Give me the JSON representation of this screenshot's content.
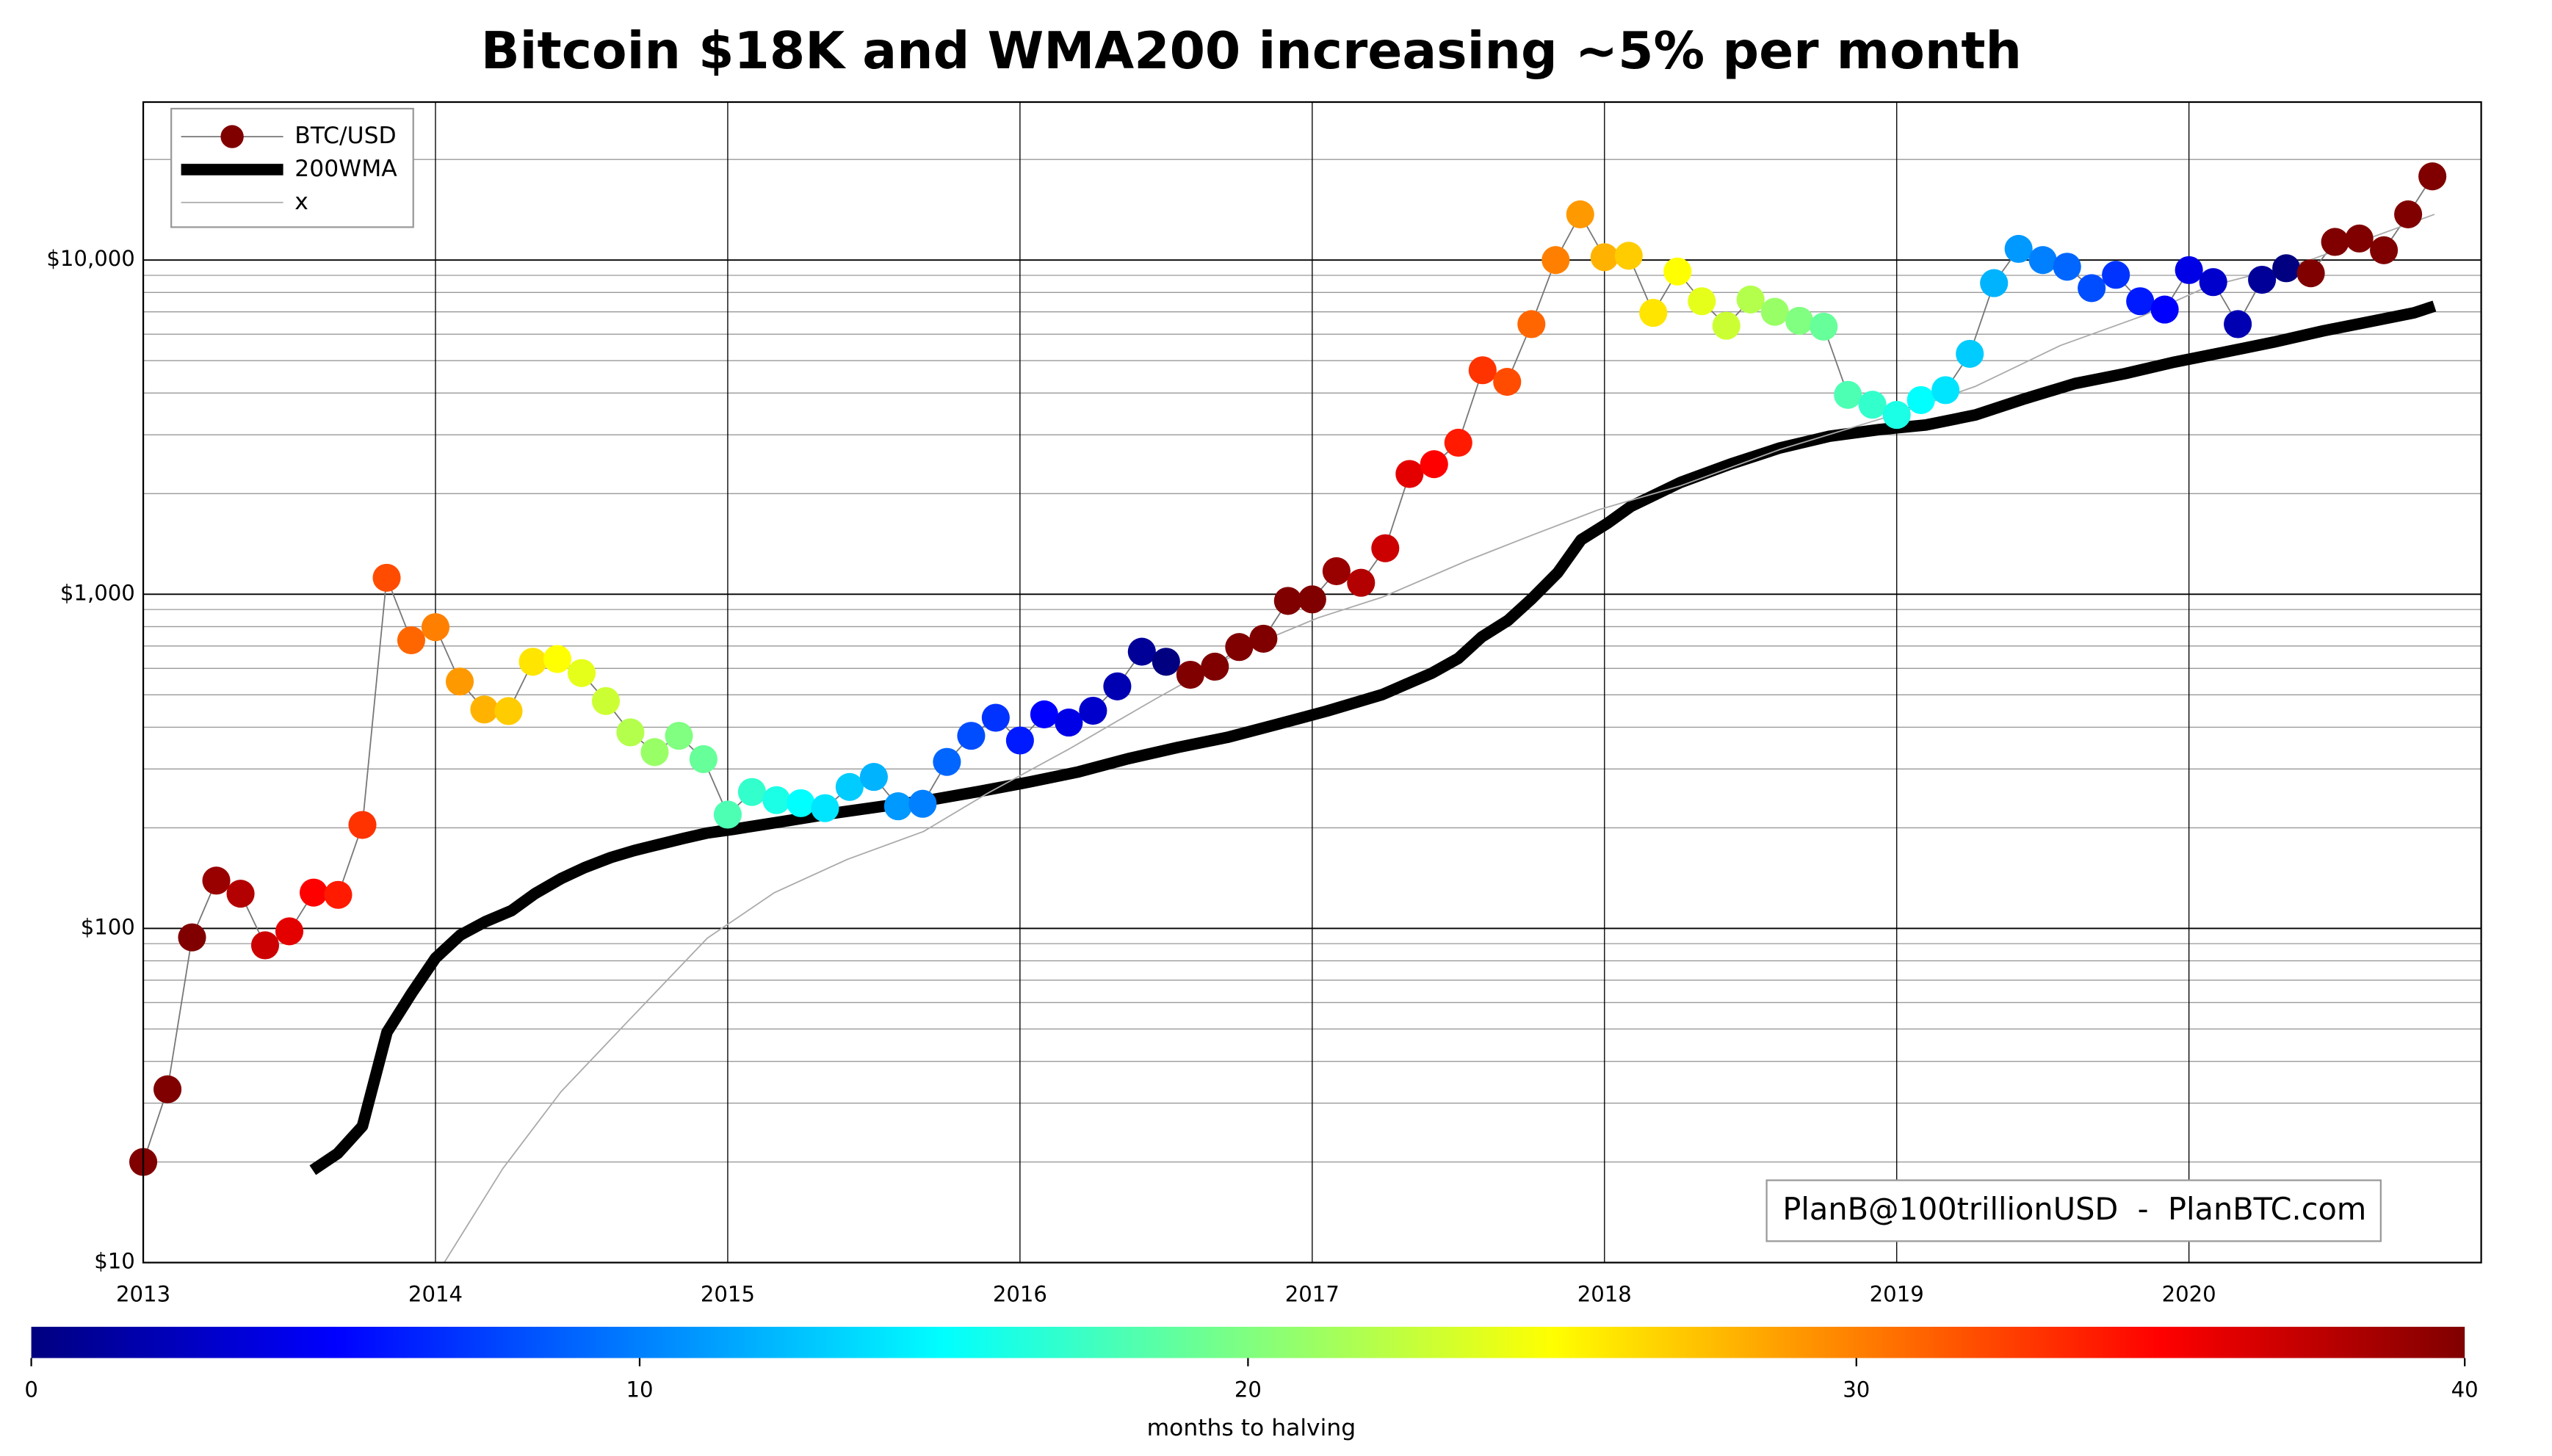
{
  "chart_data": {
    "type": "scatter-line",
    "title": "Bitcoin $18K and WMA200 increasing ~5% per month",
    "xlim": [
      2013,
      2021
    ],
    "xticks": [
      2013,
      2014,
      2015,
      2016,
      2017,
      2018,
      2019,
      2020
    ],
    "ylim": [
      10,
      29700
    ],
    "log_y": true,
    "y_minor_grid": true,
    "yticks": [
      {
        "value": 10,
        "label": "$10"
      },
      {
        "value": 100,
        "label": "$100"
      },
      {
        "value": 1000,
        "label": "$1,000"
      },
      {
        "value": 10000,
        "label": "$10,000"
      }
    ],
    "grid": true,
    "legend": "upper left",
    "series": [
      {
        "name": "BTC/USD",
        "line_color": "#777",
        "colormap": "jet",
        "x": [
          2013,
          2013.083,
          2013.167,
          2013.25,
          2013.333,
          2013.417,
          2013.5,
          2013.583,
          2013.667,
          2013.75,
          2013.833,
          2013.917,
          2014,
          2014.083,
          2014.167,
          2014.25,
          2014.333,
          2014.417,
          2014.5,
          2014.583,
          2014.667,
          2014.75,
          2014.833,
          2014.917,
          2015,
          2015.083,
          2015.167,
          2015.25,
          2015.333,
          2015.417,
          2015.5,
          2015.583,
          2015.667,
          2015.75,
          2015.833,
          2015.917,
          2016,
          2016.083,
          2016.167,
          2016.25,
          2016.333,
          2016.417,
          2016.5,
          2016.583,
          2016.667,
          2016.75,
          2016.833,
          2016.917,
          2017,
          2017.083,
          2017.167,
          2017.25,
          2017.333,
          2017.417,
          2017.5,
          2017.583,
          2017.667,
          2017.75,
          2017.833,
          2017.917,
          2018,
          2018.083,
          2018.167,
          2018.25,
          2018.333,
          2018.417,
          2018.5,
          2018.583,
          2018.667,
          2018.75,
          2018.833,
          2018.917,
          2019,
          2019.083,
          2019.167,
          2019.25,
          2019.333,
          2019.417,
          2019.5,
          2019.583,
          2019.667,
          2019.75,
          2019.833,
          2019.917,
          2020,
          2020.083,
          2020.167,
          2020.25,
          2020.333,
          2020.417,
          2020.5,
          2020.583,
          2020.667,
          2020.75,
          2020.833
        ],
        "values": [
          20,
          33,
          94,
          139,
          127,
          89,
          98,
          128,
          126,
          204,
          1120,
          728,
          797,
          548,
          452,
          447,
          628,
          640,
          581,
          479,
          386,
          337,
          377,
          321,
          219,
          256,
          242,
          237,
          229,
          265,
          284,
          232,
          236,
          315,
          377,
          427,
          365,
          437,
          413,
          448,
          530,
          673,
          628,
          574,
          607,
          695,
          736,
          955,
          965,
          1172,
          1082,
          1373,
          2290,
          2450,
          2840,
          4680,
          4320,
          6430,
          10000,
          13700,
          10200,
          10300,
          6950,
          9240,
          7530,
          6360,
          7620,
          7000,
          6580,
          6320,
          3950,
          3690,
          3440,
          3810,
          4080,
          5240,
          8530,
          10800,
          10000,
          9550,
          8240,
          9030,
          7530,
          7110,
          9330,
          8590,
          6430,
          8730,
          9450,
          9130,
          11330,
          11600,
          10700,
          13700,
          17800
        ],
        "color_values": [
          42,
          41,
          40,
          39,
          38,
          37,
          36,
          35,
          34,
          33,
          32,
          31,
          30,
          29,
          28,
          27,
          26,
          25,
          24,
          23,
          22,
          21,
          20,
          19,
          18,
          17,
          16,
          15,
          14,
          13,
          12,
          11,
          10,
          9,
          8,
          7,
          6,
          5,
          4,
          3,
          2,
          1,
          0,
          45,
          44,
          43,
          42,
          41,
          40,
          39,
          38,
          37,
          36,
          35,
          34,
          33,
          32,
          31,
          30,
          29,
          28,
          27,
          26,
          25,
          24,
          23,
          22,
          21,
          20,
          19,
          18,
          17,
          16,
          15,
          14,
          13,
          12,
          11,
          10,
          9,
          8,
          7,
          6,
          5,
          4,
          3,
          2,
          1,
          0,
          46,
          45,
          44,
          43,
          42,
          41
        ]
      },
      {
        "name": "200WMA",
        "color": "#000000",
        "x": [
          2013.58,
          2013.665,
          2013.75,
          2013.834,
          2013.92,
          2014,
          2014.085,
          2014.17,
          2014.26,
          2014.34,
          2014.43,
          2014.51,
          2014.6,
          2014.68,
          2014.76,
          2014.85,
          2014.93,
          2015.02,
          2015.19,
          2015.36,
          2015.53,
          2015.69,
          2015.86,
          2016.03,
          2016.2,
          2016.37,
          2016.54,
          2016.71,
          2016.88,
          2017.05,
          2017.24,
          2017.41,
          2017.5,
          2017.58,
          2017.67,
          2017.75,
          2017.84,
          2017.92,
          2018.01,
          2018.09,
          2018.26,
          2018.43,
          2018.6,
          2018.77,
          2018.94,
          2019.1,
          2019.27,
          2019.44,
          2019.61,
          2019.78,
          2019.95,
          2020.12,
          2020.29,
          2020.46,
          2020.63,
          2020.77,
          2020.84
        ],
        "values": [
          18.9,
          21.2,
          25.6,
          48.9,
          64.3,
          81.5,
          95.5,
          104.7,
          113,
          127,
          141,
          152,
          163,
          171,
          178,
          186,
          193,
          198,
          209,
          221,
          232,
          242,
          257,
          274,
          294,
          322,
          348,
          373,
          408,
          447,
          501,
          581,
          643,
          745,
          835,
          967,
          1160,
          1455,
          1630,
          1830,
          2160,
          2450,
          2740,
          2970,
          3110,
          3210,
          3440,
          3850,
          4270,
          4570,
          4950,
          5300,
          5680,
          6140,
          6570,
          6950,
          7280
        ]
      },
      {
        "name": "x",
        "color": "#aaaaaa",
        "x": [
          2014.03,
          2014.23,
          2014.43,
          2014.65,
          2014.93,
          2015.16,
          2015.41,
          2015.67,
          2015.89,
          2016.17,
          2016.46,
          2016.79,
          2017.02,
          2017.24,
          2017.53,
          2017.75,
          2017.98,
          2018.26,
          2018.6,
          2018.99,
          2019.27,
          2019.56,
          2019.84,
          2020.06,
          2020.4,
          2020.84
        ],
        "values": [
          10,
          19.1,
          32.5,
          51.8,
          93.5,
          128,
          161,
          195,
          254,
          345,
          484,
          701,
          850,
          980,
          1260,
          1500,
          1790,
          2110,
          2710,
          3440,
          4190,
          5550,
          6800,
          8300,
          9900,
          13700
        ]
      }
    ],
    "colorbar": {
      "label": "months to halving",
      "clim": [
        0,
        40
      ],
      "ticks": [
        0,
        10,
        20,
        30,
        40
      ]
    },
    "annotation": "PlanB@100trillionUSD  -  PlanBTC.com"
  }
}
